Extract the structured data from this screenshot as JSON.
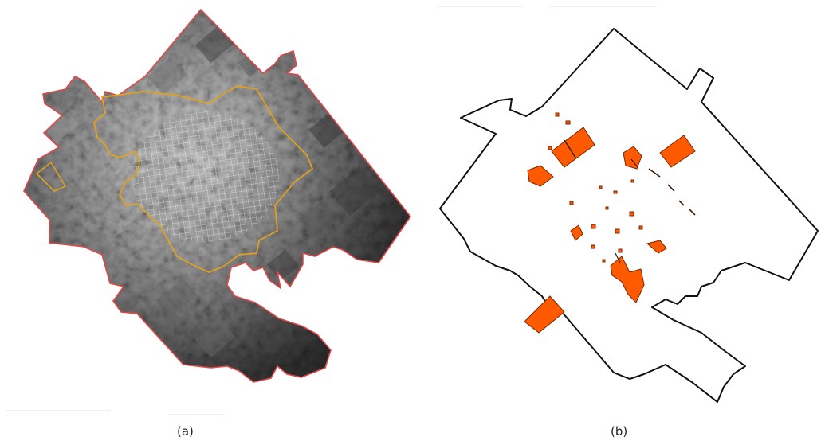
{
  "panels": [
    {
      "id": "a",
      "caption": "(a)"
    },
    {
      "id": "b",
      "caption": "(b)"
    }
  ],
  "colors": {
    "district_boundary_a": "#e04848",
    "urban_boundary": "#e0a020",
    "district_boundary_b": "#111111",
    "parcel_fill": "#ff5a00",
    "parcel_stroke": "#7a2600",
    "imagery_dark": "#4a4a4a",
    "imagery_mid": "#8a8a8a",
    "imagery_light": "#d6d6d6"
  },
  "icons": [
    "satellite-imagery",
    "parcel-polygons"
  ]
}
